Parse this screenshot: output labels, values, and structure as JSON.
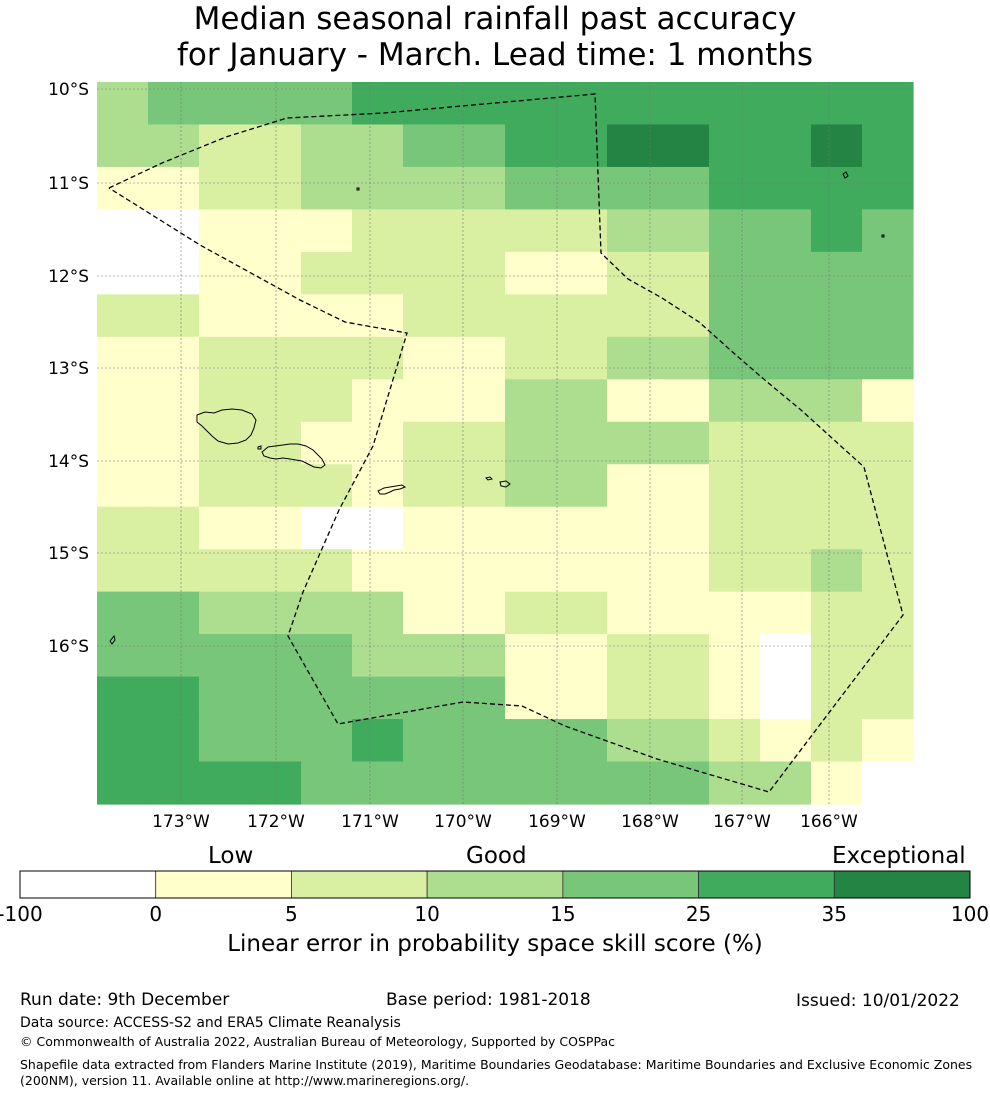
{
  "title": {
    "line1": "Median seasonal rainfall past accuracy",
    "line2": "for January - March. Lead time: 1 months"
  },
  "map": {
    "lat_labels": [
      "10°S",
      "11°S",
      "12°S",
      "13°S",
      "14°S",
      "15°S",
      "16°S"
    ],
    "lon_labels": [
      "173°W",
      "172°W",
      "171°W",
      "170°W",
      "169°W",
      "168°W",
      "167°W",
      "166°W"
    ],
    "colors": {
      "band_lt0": "#ffffff",
      "band_0_5": "#ffffcc",
      "band_5_10": "#d9f0a3",
      "band_10_15": "#addd8e",
      "band_15_25": "#78c679",
      "band_25_35": "#41ab5d",
      "band_35_100": "#238443"
    },
    "skill_class_grid": [
      [
        3,
        4,
        4,
        4,
        4,
        5,
        5,
        5,
        5,
        5,
        5,
        5,
        5,
        5,
        5,
        5
      ],
      [
        3,
        3,
        2,
        2,
        3,
        3,
        4,
        4,
        5,
        5,
        6,
        6,
        5,
        5,
        6,
        5
      ],
      [
        1,
        1,
        2,
        2,
        3,
        3,
        3,
        3,
        4,
        4,
        4,
        4,
        5,
        5,
        5,
        5
      ],
      [
        0,
        0,
        1,
        1,
        1,
        2,
        2,
        2,
        2,
        2,
        3,
        3,
        4,
        4,
        5,
        4
      ],
      [
        0,
        0,
        1,
        1,
        2,
        2,
        2,
        2,
        1,
        1,
        2,
        2,
        4,
        4,
        4,
        4
      ],
      [
        2,
        2,
        1,
        1,
        1,
        1,
        2,
        2,
        2,
        2,
        2,
        2,
        4,
        4,
        4,
        4
      ],
      [
        1,
        1,
        2,
        2,
        2,
        2,
        1,
        1,
        2,
        2,
        3,
        3,
        4,
        4,
        4,
        4
      ],
      [
        1,
        1,
        2,
        2,
        2,
        1,
        1,
        1,
        3,
        3,
        1,
        1,
        3,
        3,
        3,
        1
      ],
      [
        1,
        1,
        2,
        2,
        1,
        1,
        2,
        2,
        3,
        3,
        3,
        3,
        2,
        2,
        2,
        2
      ],
      [
        1,
        1,
        2,
        2,
        2,
        1,
        2,
        2,
        3,
        3,
        1,
        1,
        2,
        2,
        2,
        2
      ],
      [
        2,
        2,
        1,
        1,
        0,
        0,
        1,
        1,
        1,
        1,
        1,
        1,
        2,
        2,
        2,
        2
      ],
      [
        2,
        2,
        2,
        2,
        2,
        1,
        1,
        1,
        1,
        1,
        1,
        1,
        2,
        2,
        3,
        2
      ],
      [
        4,
        4,
        3,
        3,
        3,
        3,
        1,
        1,
        2,
        2,
        1,
        1,
        1,
        1,
        2,
        2
      ],
      [
        4,
        4,
        4,
        4,
        4,
        3,
        3,
        3,
        1,
        1,
        2,
        2,
        1,
        0,
        2,
        2
      ],
      [
        5,
        5,
        4,
        4,
        4,
        4,
        4,
        4,
        1,
        1,
        2,
        2,
        1,
        0,
        2,
        2
      ],
      [
        5,
        5,
        4,
        4,
        4,
        5,
        4,
        4,
        4,
        4,
        3,
        3,
        2,
        1,
        2,
        1
      ],
      [
        5,
        5,
        5,
        5,
        4,
        4,
        4,
        4,
        4,
        4,
        4,
        4,
        3,
        3,
        1,
        0
      ]
    ]
  },
  "colorbar": {
    "category_low": "Low",
    "category_good": "Good",
    "category_exceptional": "Exceptional",
    "boundaries": [
      -100,
      0,
      5,
      10,
      15,
      25,
      35,
      100
    ],
    "tick_labels": [
      "-100",
      "0",
      "5",
      "10",
      "15",
      "25",
      "35",
      "100"
    ],
    "title": "Linear error in probability space skill score (%)"
  },
  "footer": {
    "run_date": "Run date: 9th December",
    "base_period": "Base period: 1981-2018",
    "issued": "Issued: 10/01/2022",
    "data_source": "Data source: ACCESS-S2 and ERA5 Climate Reanalysis",
    "copyright": "© Commonwealth of Australia 2022, Australian Bureau of Meteorology, Supported by COSPPac",
    "shapefile_line1": "Shapefile data extracted from Flanders Marine Institute (2019), Maritime Boundaries Geodatabase: Maritime Boundaries and Exclusive Economic Zones",
    "shapefile_line2": "(200NM), version 11. Available online at http://www.marineregions.org/."
  }
}
